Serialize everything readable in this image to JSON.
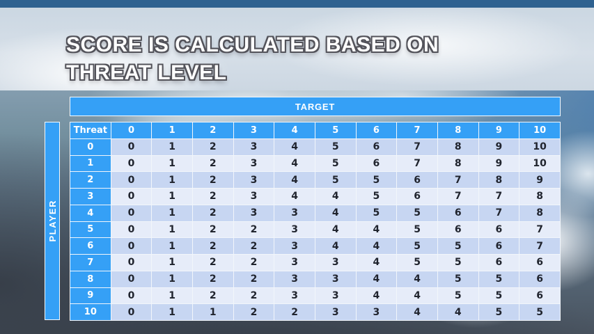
{
  "slide": {
    "title_line1": "SCORE IS CALCULATED BASED ON",
    "title_line2": "THREAT LEVEL"
  },
  "matrix": {
    "target_label": "TARGET",
    "player_label": "PLAYER",
    "corner_label": "Threat",
    "column_headers": [
      "0",
      "1",
      "2",
      "3",
      "4",
      "5",
      "6",
      "7",
      "8",
      "9",
      "10"
    ],
    "rows": [
      {
        "threat": "0",
        "values": [
          0,
          1,
          2,
          3,
          4,
          5,
          6,
          7,
          8,
          9,
          10
        ]
      },
      {
        "threat": "1",
        "values": [
          0,
          1,
          2,
          3,
          4,
          5,
          6,
          7,
          8,
          9,
          10
        ]
      },
      {
        "threat": "2",
        "values": [
          0,
          1,
          2,
          3,
          4,
          5,
          5,
          6,
          7,
          8,
          9
        ]
      },
      {
        "threat": "3",
        "values": [
          0,
          1,
          2,
          3,
          4,
          4,
          5,
          6,
          7,
          7,
          8
        ]
      },
      {
        "threat": "4",
        "values": [
          0,
          1,
          2,
          3,
          3,
          4,
          5,
          5,
          6,
          7,
          8
        ]
      },
      {
        "threat": "5",
        "values": [
          0,
          1,
          2,
          2,
          3,
          4,
          4,
          5,
          6,
          6,
          7
        ]
      },
      {
        "threat": "6",
        "values": [
          0,
          1,
          2,
          2,
          3,
          4,
          4,
          5,
          5,
          6,
          7
        ]
      },
      {
        "threat": "7",
        "values": [
          0,
          1,
          2,
          2,
          3,
          3,
          4,
          5,
          5,
          6,
          6
        ]
      },
      {
        "threat": "8",
        "values": [
          0,
          1,
          2,
          2,
          3,
          3,
          4,
          4,
          5,
          5,
          6
        ]
      },
      {
        "threat": "9",
        "values": [
          0,
          1,
          2,
          2,
          3,
          3,
          4,
          4,
          5,
          5,
          6
        ]
      },
      {
        "threat": "10",
        "values": [
          0,
          1,
          1,
          2,
          2,
          3,
          3,
          4,
          4,
          5,
          5
        ]
      }
    ]
  },
  "colors": {
    "accent_blue": "#35a0f6",
    "top_strip_blue": "#2e6190",
    "band_dark_row": "#c7d6f2",
    "band_light_row": "#e6ecf9",
    "cell_text": "#20242e",
    "header_text": "#ffffff"
  }
}
